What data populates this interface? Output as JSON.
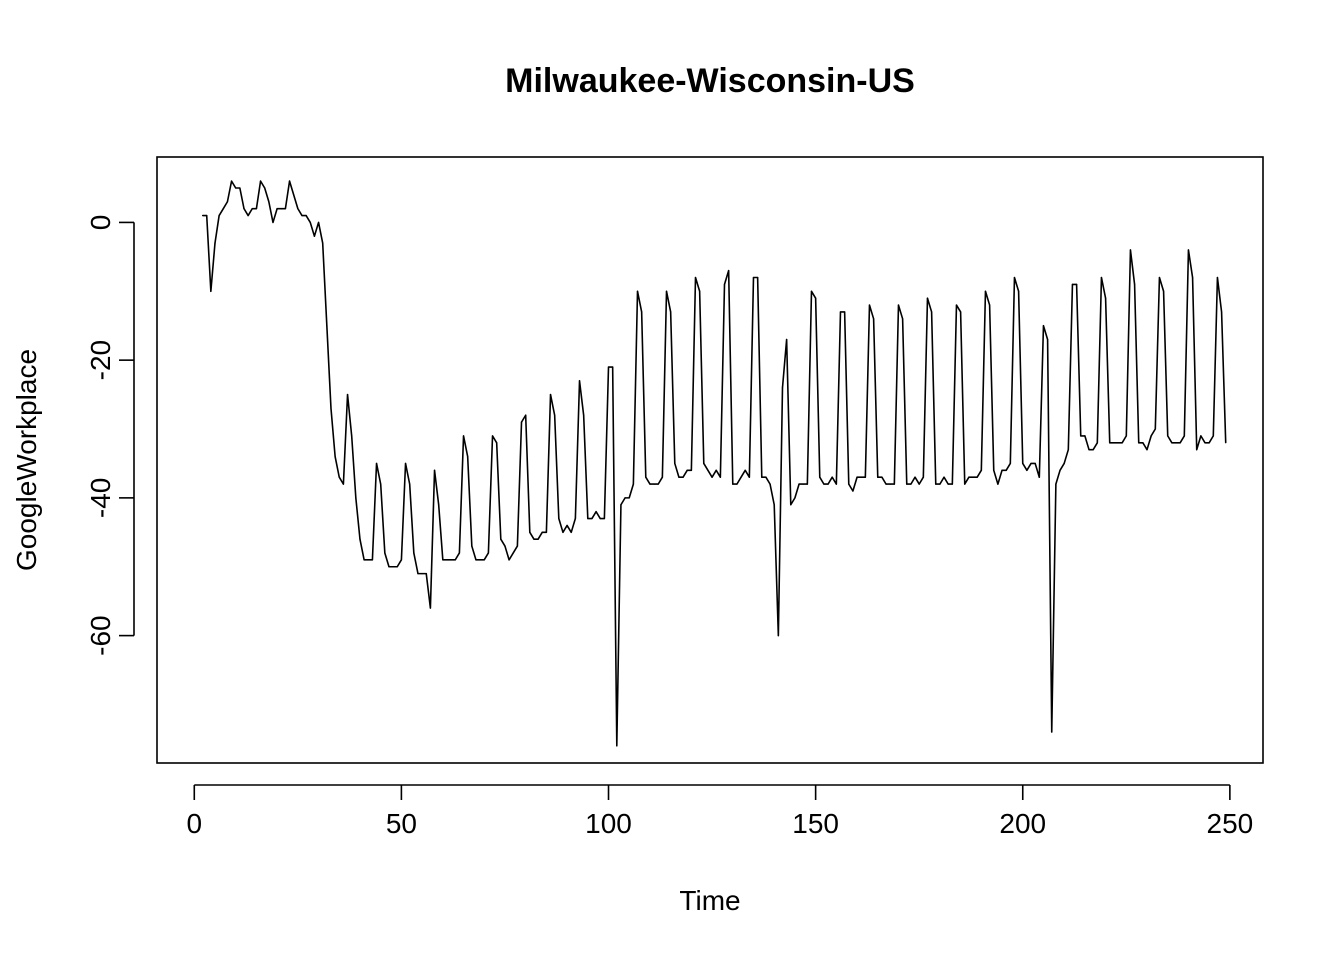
{
  "chart_data": {
    "type": "line",
    "title": "Milwaukee-Wisconsin-US",
    "xlabel": "Time",
    "ylabel": "GoogleWorkplace",
    "xlim": [
      -9,
      258
    ],
    "ylim": [
      -78.5,
      9.5
    ],
    "xticks": [
      0,
      50,
      100,
      150,
      200,
      250
    ],
    "yticks": [
      0,
      -20,
      -40,
      -60
    ],
    "grid": false,
    "line_color": "#000000",
    "series": [
      {
        "x_start": 2,
        "values": [
          1,
          1,
          -10,
          -3,
          1,
          2,
          3,
          6,
          5,
          5,
          2,
          1,
          2,
          2,
          6,
          5,
          3,
          0,
          2,
          2,
          2,
          6,
          4,
          2,
          1,
          1,
          0,
          -2,
          0,
          -3,
          -15,
          -27,
          -34,
          -37,
          -38,
          -25,
          -31,
          -40,
          -46,
          -49,
          -49,
          -49,
          -35,
          -38,
          -48,
          -50,
          -50,
          -50,
          -49,
          -35,
          -38,
          -48,
          -51,
          -51,
          -51,
          -56,
          -36,
          -41,
          -49,
          -49,
          -49,
          -49,
          -48,
          -31,
          -34,
          -47,
          -49,
          -49,
          -49,
          -48,
          -31,
          -32,
          -46,
          -47,
          -49,
          -48,
          -47,
          -29,
          -28,
          -45,
          -46,
          -46,
          -45,
          -45,
          -25,
          -28,
          -43,
          -45,
          -44,
          -45,
          -43,
          -23,
          -28,
          -43,
          -43,
          -42,
          -43,
          -43,
          -21,
          -21,
          -76,
          -41,
          -40,
          -40,
          -38,
          -10,
          -13,
          -37,
          -38,
          -38,
          -38,
          -37,
          -10,
          -13,
          -35,
          -37,
          -37,
          -36,
          -36,
          -8,
          -10,
          -35,
          -36,
          -37,
          -36,
          -37,
          -9,
          -7,
          -38,
          -38,
          -37,
          -36,
          -37,
          -8,
          -8,
          -37,
          -37,
          -38,
          -41,
          -60,
          -24,
          -17,
          -41,
          -40,
          -38,
          -38,
          -38,
          -10,
          -11,
          -37,
          -38,
          -38,
          -37,
          -38,
          -13,
          -13,
          -38,
          -39,
          -37,
          -37,
          -37,
          -12,
          -14,
          -37,
          -37,
          -38,
          -38,
          -38,
          -12,
          -14,
          -38,
          -38,
          -37,
          -38,
          -37,
          -11,
          -13,
          -38,
          -38,
          -37,
          -38,
          -38,
          -12,
          -13,
          -38,
          -37,
          -37,
          -37,
          -36,
          -10,
          -12,
          -36,
          -38,
          -36,
          -36,
          -35,
          -8,
          -10,
          -35,
          -36,
          -35,
          -35,
          -37,
          -15,
          -17,
          -74,
          -38,
          -36,
          -35,
          -33,
          -9,
          -9,
          -31,
          -31,
          -33,
          -33,
          -32,
          -8,
          -11,
          -32,
          -32,
          -32,
          -32,
          -31,
          -4,
          -9,
          -32,
          -32,
          -33,
          -31,
          -30,
          -8,
          -10,
          -31,
          -32,
          -32,
          -32,
          -31,
          -4,
          -8,
          -33,
          -31,
          -32,
          -32,
          -31,
          -8,
          -13,
          -32
        ]
      }
    ]
  }
}
